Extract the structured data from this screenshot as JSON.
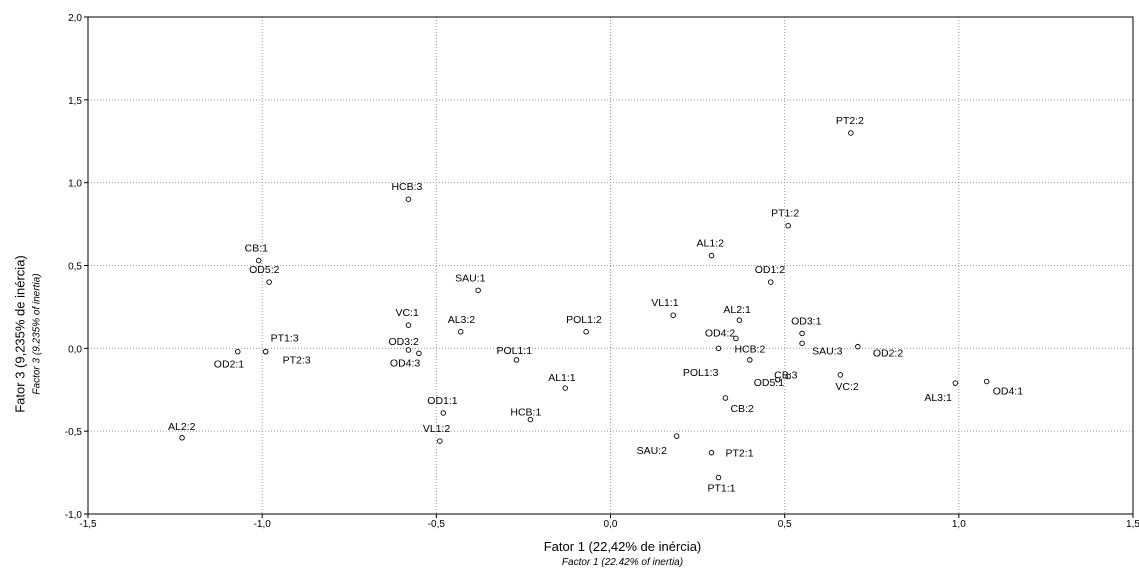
{
  "chart_data": {
    "type": "scatter",
    "title": "",
    "xlabel": "Fator 1 (22,42% de inércia)",
    "xlabel_en": "Factor 1 (22.42% of inertia)",
    "ylabel": "Fator 3 (9,235% de inércia)",
    "ylabel_en": "Factor 3 (9.235% of inertia)",
    "xlim": [
      -1.5,
      1.5
    ],
    "ylim": [
      -1.0,
      2.0
    ],
    "x_ticks": [
      "-1,5",
      "-1,0",
      "-0,5",
      "0,0",
      "0,5",
      "1,0",
      "1,5"
    ],
    "y_ticks": [
      "2,0",
      "1,5",
      "1,0",
      "0,5",
      "0,0",
      "-0,5",
      "-1,0"
    ],
    "grid": true,
    "grid_style": "dotted",
    "points": [
      {
        "label": "PT2:2",
        "x": 0.69,
        "y": 1.3
      },
      {
        "label": "HCB:3",
        "x": -0.58,
        "y": 0.9
      },
      {
        "label": "PT1:2",
        "x": 0.51,
        "y": 0.74
      },
      {
        "label": "AL1:2",
        "x": 0.29,
        "y": 0.56
      },
      {
        "label": "CB:1",
        "x": -1.01,
        "y": 0.53
      },
      {
        "label": "OD1:2",
        "x": 0.46,
        "y": 0.4
      },
      {
        "label": "OD5:2",
        "x": -0.98,
        "y": 0.4
      },
      {
        "label": "SAU:1",
        "x": -0.38,
        "y": 0.35
      },
      {
        "label": "VL1:1",
        "x": 0.18,
        "y": 0.2
      },
      {
        "label": "AL2:1",
        "x": 0.37,
        "y": 0.17
      },
      {
        "label": "VC:1",
        "x": -0.58,
        "y": 0.14
      },
      {
        "label": "POL1:2",
        "x": -0.07,
        "y": 0.1
      },
      {
        "label": "AL3:2",
        "x": -0.43,
        "y": 0.1
      },
      {
        "label": "OD3:1",
        "x": 0.55,
        "y": 0.09
      },
      {
        "label": "OD4:2",
        "x": 0.36,
        "y": 0.06
      },
      {
        "label": "SAU:3",
        "x": 0.55,
        "y": 0.03
      },
      {
        "label": "OD2:2",
        "x": 0.71,
        "y": 0.01
      },
      {
        "label": "HCB:2",
        "x": 0.31,
        "y": 0.0
      },
      {
        "label": "OD3:2",
        "x": -0.58,
        "y": -0.01
      },
      {
        "label": "OD4:3",
        "x": -0.55,
        "y": -0.03
      },
      {
        "label": "PT1:3",
        "x": -0.99,
        "y": -0.02
      },
      {
        "label": "PT2:3",
        "x": -0.99,
        "y": -0.02
      },
      {
        "label": "OD2:1",
        "x": -1.07,
        "y": -0.02
      },
      {
        "label": "POL1:1",
        "x": -0.27,
        "y": -0.07
      },
      {
        "label": "POL1:3",
        "x": 0.4,
        "y": -0.07
      },
      {
        "label": "CB:3",
        "x": 0.51,
        "y": -0.17
      },
      {
        "label": "VC:2",
        "x": 0.66,
        "y": -0.16
      },
      {
        "label": "OD5:1",
        "x": 0.48,
        "y": -0.19
      },
      {
        "label": "AL3:1",
        "x": 0.99,
        "y": -0.21
      },
      {
        "label": "OD4:1",
        "x": 1.08,
        "y": -0.2
      },
      {
        "label": "AL1:1",
        "x": -0.13,
        "y": -0.24
      },
      {
        "label": "CB:2",
        "x": 0.33,
        "y": -0.3
      },
      {
        "label": "OD1:1",
        "x": -0.48,
        "y": -0.39
      },
      {
        "label": "HCB:1",
        "x": -0.23,
        "y": -0.43
      },
      {
        "label": "VL1:2",
        "x": -0.49,
        "y": -0.56
      },
      {
        "label": "SAU:2",
        "x": 0.19,
        "y": -0.53
      },
      {
        "label": "AL2:2",
        "x": -1.23,
        "y": -0.54
      },
      {
        "label": "PT2:1",
        "x": 0.29,
        "y": -0.63
      },
      {
        "label": "PT1:1",
        "x": 0.31,
        "y": -0.78
      }
    ]
  }
}
